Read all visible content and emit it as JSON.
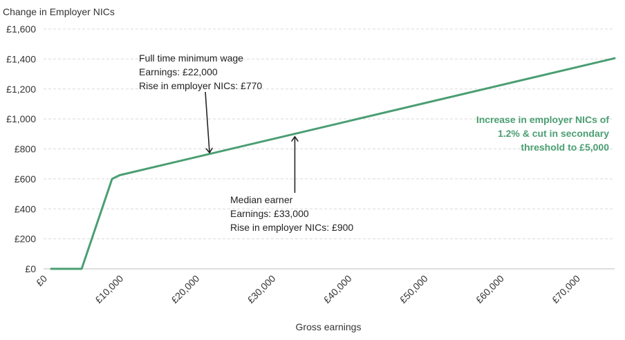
{
  "chart_data": {
    "type": "line",
    "ylabel": "Change in Employer NICs",
    "xlabel": "Gross earnings",
    "xlim": [
      0,
      75000
    ],
    "ylim": [
      0,
      1600
    ],
    "x_ticks": [
      0,
      10000,
      20000,
      30000,
      40000,
      50000,
      60000,
      70000
    ],
    "x_tick_labels": [
      "£0",
      "£10,000",
      "£20,000",
      "£30,000",
      "£40,000",
      "£50,000",
      "£60,000",
      "£70,000"
    ],
    "y_ticks": [
      0,
      200,
      400,
      600,
      800,
      1000,
      1200,
      1400,
      1600
    ],
    "y_tick_labels": [
      "£0",
      "£200",
      "£400",
      "£600",
      "£800",
      "£1,000",
      "£1,200",
      "£1,400",
      "£1,600"
    ],
    "grid": "horizontal dashed",
    "series": [
      {
        "color": "#4a9e72",
        "x": [
          1000,
          5000,
          9000,
          10000,
          75000
        ],
        "y": [
          0,
          0,
          600,
          625,
          1405
        ]
      }
    ],
    "annotations": [
      {
        "lines": [
          "Full time minimum wage",
          "Earnings: £22,000",
          "Rise in employer NICs: £770"
        ],
        "x": 22000,
        "y": 770
      },
      {
        "lines": [
          "Median earner",
          "Earnings: £33,000",
          "Rise in employer NICs: £900"
        ],
        "x": 33000,
        "y": 900
      }
    ],
    "series_note": {
      "lines": [
        "Increase in employer NICs of",
        "1.2% & cut in secondary",
        "threshold to £5,000"
      ],
      "color": "#4a9e72"
    }
  }
}
